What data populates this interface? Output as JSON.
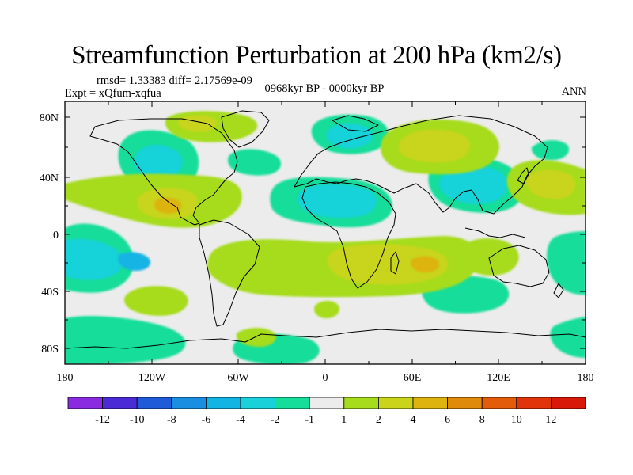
{
  "title": "Streamfunction Perturbation at 200 hPa (km2/s)",
  "stats": "rmsd= 1.33383 diff= 2.17569e-09",
  "expt": "Expt = xQfum-xqfua",
  "period": "0968kyr BP - 0000kyr BP",
  "season": "ANN",
  "axes": {
    "lat_labels": [
      "80N",
      "40N",
      "0",
      "40S",
      "80S"
    ],
    "lon_labels": [
      "180",
      "120W",
      "60W",
      "0",
      "60E",
      "120E",
      "180"
    ]
  },
  "colorbar": {
    "labels": [
      "-12",
      "-10",
      "-8",
      "-6",
      "-4",
      "-2",
      "-1",
      "1",
      "2",
      "4",
      "6",
      "8",
      "10",
      "12"
    ],
    "colors": [
      "#8a2be2",
      "#4b2bd6",
      "#1f5ad8",
      "#1a8ee0",
      "#12b4e4",
      "#19d2d9",
      "#17dd9a",
      "#ececec",
      "#a6dc1c",
      "#c9d41a",
      "#ddb40f",
      "#e08a0c",
      "#e25c0a",
      "#e2340a",
      "#d81808"
    ]
  },
  "colors": {
    "neutral": "#ececec",
    "neg_light": "#17dd9a",
    "neg_mid": "#19d2d9",
    "neg_strong": "#12b4e4",
    "pos_light": "#a6dc1c",
    "pos_mid": "#c9d41a",
    "pos_strong": "#ddb40f"
  }
}
